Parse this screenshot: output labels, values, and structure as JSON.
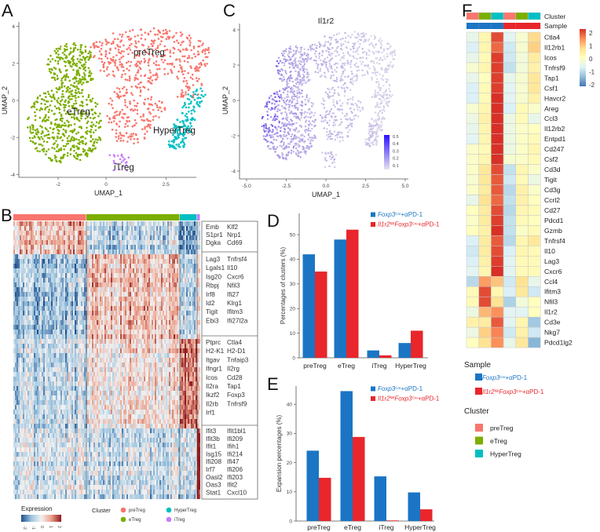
{
  "panels": {
    "A": "A",
    "B": "B",
    "C": "C",
    "D": "D",
    "E": "E",
    "F": "F"
  },
  "legend_sample": {
    "ctrl": {
      "gene": "Foxp3",
      "sup": "Cre",
      "suffix": "+αPD-1"
    },
    "ko": {
      "gene1": "Il1r2",
      "sup1": "fl/fl",
      "gene2": "Foxp3",
      "sup2": "Cre",
      "suffix": "+αPD-1"
    }
  },
  "colors": {
    "preTreg": "#F8766D",
    "eTreg": "#7CAE00",
    "HyperTreg": "#00BFC4",
    "iTreg": "#C77CFF",
    "ctrl": "#1B75C4",
    "ko": "#E8262B"
  },
  "chart_data": [
    {
      "type": "scatter",
      "xlabel": "UMAP_1",
      "ylabel": "UMAP_2",
      "xticks": [
        "-2",
        "0",
        "2.5"
      ],
      "xtick_values": [
        -2,
        0,
        2.5
      ],
      "yticks": [
        "4",
        "2",
        "0",
        "-2",
        "-4"
      ],
      "ytick_values": [
        4,
        2,
        0,
        -2,
        -4
      ],
      "clusters": [
        {
          "name": "preTreg",
          "label_pos": [
            1.8,
            2.6
          ],
          "n": 600
        },
        {
          "name": "eTreg",
          "label_pos": [
            -1.15,
            -0.6
          ],
          "n": 700
        },
        {
          "name": "HyperTreg",
          "label_pos": [
            2.85,
            -1.6
          ],
          "n": 160
        },
        {
          "name": "iTreg",
          "label_pos": [
            0.75,
            -3.6
          ],
          "n": 22
        }
      ]
    },
    {
      "type": "heatmap",
      "cluster_bar": [
        "preTreg",
        "eTreg",
        "HyperTreg",
        "iTreg"
      ],
      "gene_groups": [
        [
          [
            "Emb",
            "Klf2"
          ],
          [
            "S1pr1",
            "Nrp1"
          ],
          [
            "Dgka",
            "Cd69"
          ]
        ],
        [
          [
            "Lag3",
            "Tnfrsf4"
          ],
          [
            "Lgals1",
            "Il10"
          ],
          [
            "Isg20",
            "Cxcr6"
          ],
          [
            "Rbpj",
            "Nfil3"
          ],
          [
            "Irf8",
            "Ifi27"
          ],
          [
            "Id2",
            "Klrg1"
          ],
          [
            "Tigit",
            "Ifitm3"
          ],
          [
            "Ebi3",
            "Ifi27l2a"
          ]
        ],
        [
          [
            "Ptprc",
            "Ctla4"
          ],
          [
            "H2-K1",
            "H2-D1"
          ],
          [
            "Itgav",
            "Tnfaip3"
          ],
          [
            "Ifngr1",
            "Il2rg"
          ],
          [
            "Icos",
            "Cd28"
          ],
          [
            "Il2ra",
            "Tap1"
          ],
          [
            "Ikzf2",
            "Foxp3"
          ],
          [
            "Il2rb",
            "Tnfrsf9"
          ],
          [
            "Irf1",
            ""
          ]
        ],
        [
          [
            "Ifit3",
            "Ifit1bl1"
          ],
          [
            "Ifit3b",
            "Ifi209"
          ],
          [
            "Ifit1",
            "Ifih1"
          ],
          [
            "Isg15",
            "Ifi214"
          ],
          [
            "Ifi208",
            "Ifi47"
          ],
          [
            "Irf7",
            "Ifi206"
          ],
          [
            "Oasl2",
            "Ifi203"
          ],
          [
            "Oas3",
            "Ifit2"
          ],
          [
            "Stat1",
            "Cxcl10"
          ]
        ]
      ],
      "legend": {
        "expression_title": "Expression",
        "ticks": [
          "-2",
          "-1",
          "0",
          "1",
          "2"
        ],
        "cluster_title": "Cluster",
        "clusters": [
          "preTreg",
          "HyperTreg",
          "eTreg",
          "iTreg"
        ]
      }
    },
    {
      "type": "scatter",
      "title": "Il1r2",
      "xlabel": "UMAP_1",
      "ylabel": "UMAP_2",
      "xticks": [
        "-5.0",
        "-2.5",
        "0.0",
        "2.5",
        "5.0"
      ],
      "xtick_values": [
        -5,
        -2.5,
        0,
        2.5,
        5
      ],
      "yticks": [
        "4",
        "2",
        "0",
        "-2",
        "-4"
      ],
      "ytick_values": [
        4,
        2,
        0,
        -2,
        -4
      ],
      "colorbar_ticks": [
        "0.5",
        "0.4",
        "0.3",
        "0.2",
        "0.1"
      ]
    },
    {
      "type": "bar",
      "categories": [
        "preTreg",
        "eTreg",
        "iTreg",
        "HyperTreg"
      ],
      "series": [
        {
          "key": "ctrl",
          "values": [
            42,
            48,
            3,
            6
          ]
        },
        {
          "key": "ko",
          "values": [
            35,
            52,
            1,
            11
          ]
        }
      ],
      "ylabel": "Percentages of clusters (%)",
      "yticks": [
        "0",
        "10",
        "20",
        "30",
        "40",
        "50"
      ],
      "ytick_values": [
        0,
        10,
        20,
        30,
        40,
        50
      ],
      "ylim": [
        0,
        58
      ],
      "legend": "top-right"
    },
    {
      "type": "bar",
      "categories": [
        "preTreg",
        "eTreg",
        "iTreg",
        "HyperTreg"
      ],
      "series": [
        {
          "key": "ctrl",
          "values": [
            24.1,
            44.5,
            15.3,
            9.8
          ]
        },
        {
          "key": "ko",
          "values": [
            14.8,
            28.8,
            0.2,
            4.0
          ]
        }
      ],
      "ylabel": "Expansion percentages (%)",
      "yticks": [
        "0",
        "10",
        "20",
        "30",
        "40"
      ],
      "ytick_values": [
        0,
        10,
        20,
        30,
        40
      ],
      "ylim": [
        0,
        46
      ],
      "legend": "top-right"
    },
    {
      "type": "heatmap",
      "annotation_labels": {
        "cluster": "Cluster",
        "sample": "Sample"
      },
      "columns": [
        {
          "cluster": "preTreg",
          "sample": "ctrl"
        },
        {
          "cluster": "eTreg",
          "sample": "ctrl"
        },
        {
          "cluster": "HyperTreg",
          "sample": "ctrl"
        },
        {
          "cluster": "preTreg",
          "sample": "ko"
        },
        {
          "cluster": "eTreg",
          "sample": "ko"
        },
        {
          "cluster": "HyperTreg",
          "sample": "ko"
        }
      ],
      "genes": [
        "Ctla4",
        "Il12rb1",
        "Icos",
        "Tnfrsf9",
        "Tap1",
        "Csf1",
        "Havcr2",
        "Areg",
        "Ccl3",
        "Il12rb2",
        "Entpd1",
        "Cd247",
        "Csf2",
        "Cd3d",
        "Tigit",
        "Cd3g",
        "Ccrl2",
        "Cd27",
        "Pdcd1",
        "Gzmb",
        "Tnfrsf4",
        "Il10",
        "Lag3",
        "Cxcr6",
        "Ccl4",
        "Ifitm3",
        "Nfil3",
        "Il1r2",
        "Cd3e",
        "Nkg7",
        "Pdcd1lg2"
      ],
      "values": [
        [
          -0.5,
          0.2,
          1.8,
          -0.6,
          -0.2,
          0.7
        ],
        [
          -0.7,
          0.2,
          1.6,
          -0.8,
          -0.2,
          0.8
        ],
        [
          -0.5,
          0.1,
          1.9,
          -0.8,
          -0.3,
          0.4
        ],
        [
          -0.2,
          0.2,
          1.9,
          -0.9,
          -0.3,
          0.3
        ],
        [
          -0.5,
          0.0,
          1.9,
          -0.5,
          -0.2,
          0.5
        ],
        [
          -0.7,
          0.1,
          1.9,
          -0.6,
          -0.2,
          0.5
        ],
        [
          -0.7,
          0.1,
          2.0,
          -0.6,
          -0.2,
          0.3
        ],
        [
          -0.2,
          0.2,
          2.0,
          -0.7,
          0.1,
          -0.1
        ],
        [
          -0.4,
          0.3,
          2.0,
          -0.4,
          0.1,
          -0.5
        ],
        [
          -0.5,
          0.2,
          2.0,
          -0.4,
          -0.1,
          0.0
        ],
        [
          -0.6,
          0.2,
          2.0,
          -0.4,
          -0.1,
          0.1
        ],
        [
          -0.1,
          0.1,
          2.0,
          -0.4,
          -0.1,
          0.2
        ],
        [
          -0.1,
          0.2,
          2.0,
          -0.2,
          -0.1,
          0.1
        ],
        [
          -0.1,
          0.5,
          1.8,
          -0.9,
          0.2,
          -0.1
        ],
        [
          -0.2,
          0.5,
          1.7,
          -0.8,
          0.1,
          -0.4
        ],
        [
          -0.1,
          0.4,
          1.7,
          -1.0,
          0.3,
          -0.1
        ],
        [
          -0.5,
          0.6,
          1.6,
          -0.9,
          0.3,
          0.0
        ],
        [
          0.0,
          0.4,
          1.8,
          -1.0,
          0.2,
          0.1
        ],
        [
          -0.1,
          0.4,
          1.9,
          -0.9,
          0.1,
          0.0
        ],
        [
          0.0,
          0.3,
          2.0,
          -0.9,
          -0.1,
          0.1
        ],
        [
          -0.7,
          0.4,
          1.7,
          -1.0,
          0.2,
          0.5
        ],
        [
          -0.8,
          0.4,
          1.8,
          -0.7,
          0.2,
          0.1
        ],
        [
          -0.7,
          0.3,
          1.9,
          -0.6,
          0.1,
          0.1
        ],
        [
          -0.6,
          0.2,
          2.0,
          -0.6,
          0.1,
          0.1
        ],
        [
          -1.0,
          1.2,
          0.9,
          -0.8,
          0.6,
          -0.5
        ],
        [
          0.1,
          1.8,
          0.2,
          -0.7,
          0.5,
          -0.8
        ],
        [
          0.1,
          1.8,
          0.6,
          -1.1,
          -0.3,
          0.0
        ],
        [
          -0.4,
          1.0,
          1.3,
          -0.6,
          -0.6,
          0.0
        ],
        [
          0.3,
          0.4,
          1.7,
          -0.6,
          0.2,
          -1.2
        ],
        [
          -0.4,
          0.8,
          1.4,
          -0.8,
          0.3,
          -0.8
        ],
        [
          0.0,
          0.6,
          1.3,
          -0.5,
          0.5,
          -1.4
        ]
      ],
      "colorbar_ticks": [
        "2",
        "1",
        "0",
        "-1",
        "-2"
      ],
      "legend": {
        "sample_title": "Sample",
        "cluster_title": "Cluster",
        "clusters": [
          "preTreg",
          "eTreg",
          "HyperTreg"
        ]
      }
    }
  ]
}
